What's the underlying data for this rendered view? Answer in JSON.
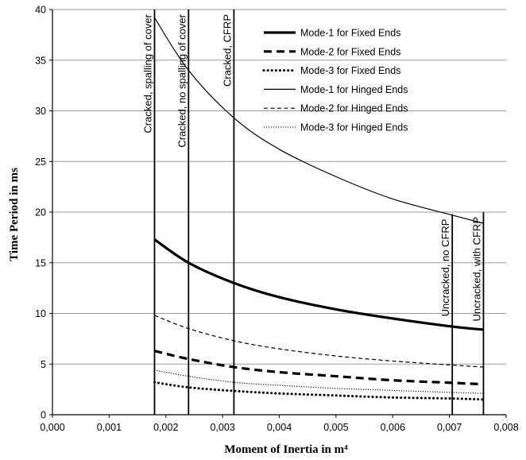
{
  "chart_data": {
    "type": "line",
    "title": "",
    "xlabel": "Moment of Inertia in m⁴",
    "ylabel": "Time Period in ms",
    "xlim": [
      0,
      0.008
    ],
    "ylim": [
      0,
      40
    ],
    "xticks": [
      "0,000",
      "0,001",
      "0,002",
      "0,003",
      "0,004",
      "0,005",
      "0,006",
      "0,007",
      "0,008"
    ],
    "yticks": [
      "0",
      "5",
      "10",
      "15",
      "20",
      "25",
      "30",
      "35",
      "40"
    ],
    "grid": "horizontal",
    "legend_position": "top-right",
    "x": [
      0.0018,
      0.0024,
      0.0032,
      0.004,
      0.005,
      0.006,
      0.00705,
      0.0076
    ],
    "series": [
      {
        "name": "Mode-1 for Fixed Ends",
        "style": "thick-solid",
        "values": [
          17.3,
          15.0,
          13.0,
          11.6,
          10.4,
          9.5,
          8.7,
          8.4
        ]
      },
      {
        "name": "Mode-2 for Fixed Ends",
        "style": "thick-dashed",
        "values": [
          6.3,
          5.5,
          4.7,
          4.2,
          3.8,
          3.4,
          3.15,
          3.0
        ]
      },
      {
        "name": "Mode-3 for Fixed Ends",
        "style": "thick-dotted",
        "values": [
          3.2,
          2.7,
          2.35,
          2.1,
          1.9,
          1.7,
          1.6,
          1.5
        ]
      },
      {
        "name": "Mode-1 for Hinged Ends",
        "style": "thin-solid",
        "values": [
          39.2,
          34.0,
          29.3,
          26.2,
          23.5,
          21.3,
          19.7,
          18.9
        ]
      },
      {
        "name": "Mode-2 for Hinged Ends",
        "style": "thin-dashed",
        "values": [
          9.8,
          8.5,
          7.3,
          6.5,
          5.8,
          5.3,
          4.9,
          4.7
        ]
      },
      {
        "name": "Mode-3 for Hinged Ends",
        "style": "thin-dotted",
        "values": [
          4.4,
          3.8,
          3.2,
          2.9,
          2.6,
          2.4,
          2.2,
          2.1
        ]
      }
    ],
    "vertical_markers": [
      {
        "x": 0.0018,
        "label": "Cracked, spalling of cover",
        "top": 40
      },
      {
        "x": 0.0024,
        "label": "Cracked, no spalling of cover",
        "top": 40
      },
      {
        "x": 0.0032,
        "label": "Cracked, CFRP",
        "top": 40
      },
      {
        "x": 0.00705,
        "label": "Uncracked, no CFRP",
        "top": 19.8
      },
      {
        "x": 0.0076,
        "label": "Uncracked, with CFRP",
        "top": 20
      }
    ]
  }
}
